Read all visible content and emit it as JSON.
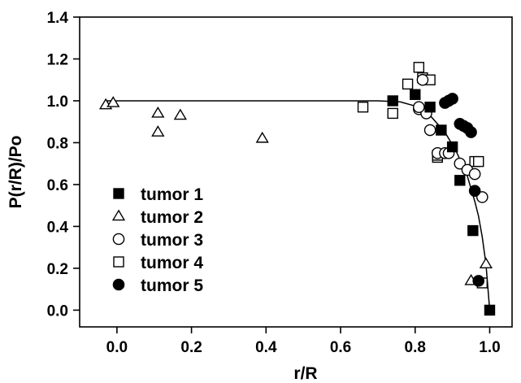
{
  "chart_data": {
    "type": "scatter",
    "title": "",
    "xlabel": "r/R",
    "ylabel": "P(r/R)/Po",
    "xlim": [
      -0.1,
      1.06
    ],
    "ylim": [
      -0.08,
      1.4
    ],
    "xticks": [
      0.0,
      0.2,
      0.4,
      0.6,
      0.8,
      1.0
    ],
    "xtick_labels": [
      "0.0",
      "0.2",
      "0.4",
      "0.6",
      "0.8",
      "1.0"
    ],
    "yticks": [
      0.0,
      0.2,
      0.4,
      0.6,
      0.8,
      1.0,
      1.2,
      1.4
    ],
    "ytick_labels": [
      "0.0",
      "0.2",
      "0.4",
      "0.6",
      "0.8",
      "1.0",
      "1.2",
      "1.4"
    ],
    "grid": false,
    "legend_position": "bottom-left",
    "series": [
      {
        "name": "tumor 1",
        "marker": "filled-square",
        "points": [
          [
            0.74,
            1.0
          ],
          [
            0.8,
            1.03
          ],
          [
            0.84,
            0.97
          ],
          [
            0.87,
            0.86
          ],
          [
            0.9,
            0.78
          ],
          [
            0.92,
            0.62
          ],
          [
            0.955,
            0.38
          ],
          [
            1.0,
            0.0
          ]
        ]
      },
      {
        "name": "tumor 2",
        "marker": "open-triangle",
        "points": [
          [
            -0.03,
            0.98
          ],
          [
            -0.01,
            0.99
          ],
          [
            0.11,
            0.94
          ],
          [
            0.17,
            0.93
          ],
          [
            0.11,
            0.85
          ],
          [
            0.39,
            0.82
          ],
          [
            0.95,
            0.14
          ],
          [
            0.99,
            0.22
          ]
        ]
      },
      {
        "name": "tumor 3",
        "marker": "open-circle",
        "points": [
          [
            0.81,
            0.96
          ],
          [
            0.83,
            0.94
          ],
          [
            0.84,
            0.86
          ],
          [
            0.86,
            0.75
          ],
          [
            0.88,
            0.75
          ],
          [
            0.89,
            0.75
          ],
          [
            0.92,
            0.7
          ],
          [
            0.94,
            0.67
          ],
          [
            0.96,
            0.65
          ],
          [
            0.98,
            0.54
          ],
          [
            0.82,
            1.1
          ],
          [
            0.81,
            0.97
          ]
        ]
      },
      {
        "name": "tumor 4",
        "marker": "open-square",
        "points": [
          [
            0.66,
            0.97
          ],
          [
            0.74,
            0.94
          ],
          [
            0.78,
            1.08
          ],
          [
            0.81,
            1.16
          ],
          [
            0.82,
            1.11
          ],
          [
            0.84,
            1.1
          ],
          [
            0.86,
            0.73
          ],
          [
            0.86,
            0.74
          ],
          [
            0.96,
            0.71
          ],
          [
            0.97,
            0.71
          ],
          [
            0.98,
            0.13
          ]
        ]
      },
      {
        "name": "tumor 5",
        "marker": "filled-circle",
        "points": [
          [
            0.88,
            0.99
          ],
          [
            0.89,
            1.0
          ],
          [
            0.9,
            1.01
          ],
          [
            0.92,
            0.89
          ],
          [
            0.93,
            0.88
          ],
          [
            0.94,
            0.87
          ],
          [
            0.95,
            0.85
          ],
          [
            0.96,
            0.57
          ],
          [
            0.97,
            0.14
          ]
        ]
      }
    ],
    "fit_curve": {
      "x": [
        -0.03,
        0.7,
        0.76,
        0.8,
        0.84,
        0.88,
        0.91,
        0.94,
        0.96,
        0.97,
        0.98,
        0.99,
        1.0
      ],
      "y": [
        1.0,
        1.0,
        0.995,
        0.975,
        0.93,
        0.85,
        0.76,
        0.64,
        0.52,
        0.45,
        0.35,
        0.22,
        0.0
      ]
    }
  }
}
